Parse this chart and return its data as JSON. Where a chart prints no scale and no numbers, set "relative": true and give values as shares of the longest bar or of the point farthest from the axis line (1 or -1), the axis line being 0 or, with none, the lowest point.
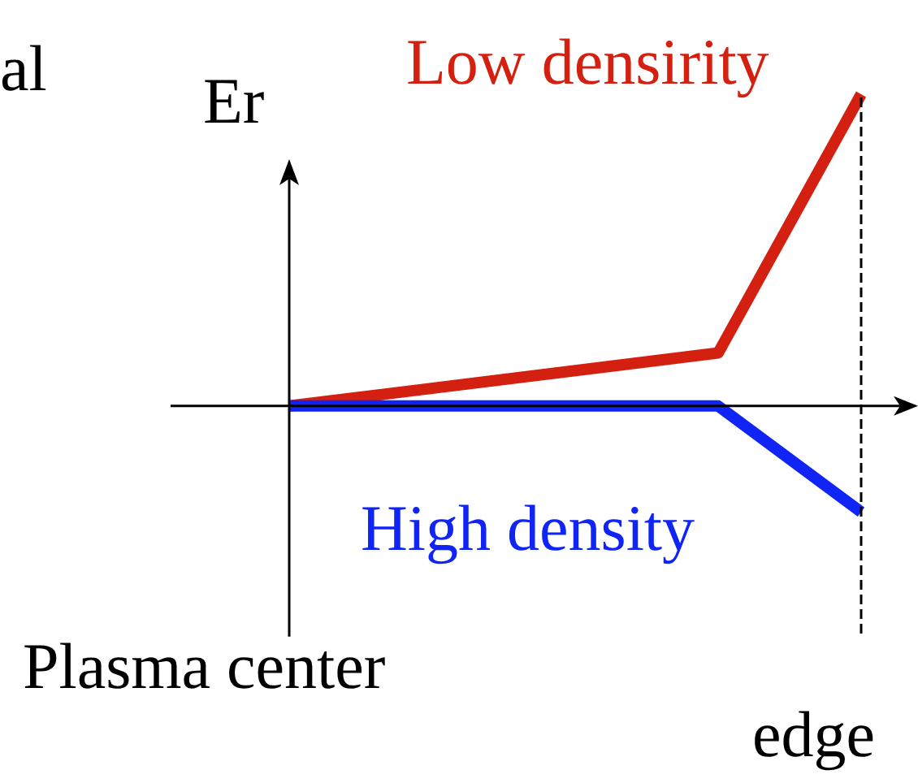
{
  "chart_data": {
    "type": "line",
    "relative": true,
    "ylabel": "Er",
    "annotations": [
      "Plasma center",
      "edge",
      "al"
    ],
    "categories": [
      null,
      null,
      null,
      null,
      null
    ],
    "series": [
      {
        "name": "Low densirity",
        "color": "#d42010",
        "values": [
          0,
          null,
          null,
          0.17,
          1
        ]
      },
      {
        "name": "High density",
        "color": "#0f24f5",
        "values": [
          0,
          null,
          null,
          0,
          -0.34
        ]
      }
    ],
    "legend": false,
    "marker": "none",
    "line_style": "solid"
  }
}
